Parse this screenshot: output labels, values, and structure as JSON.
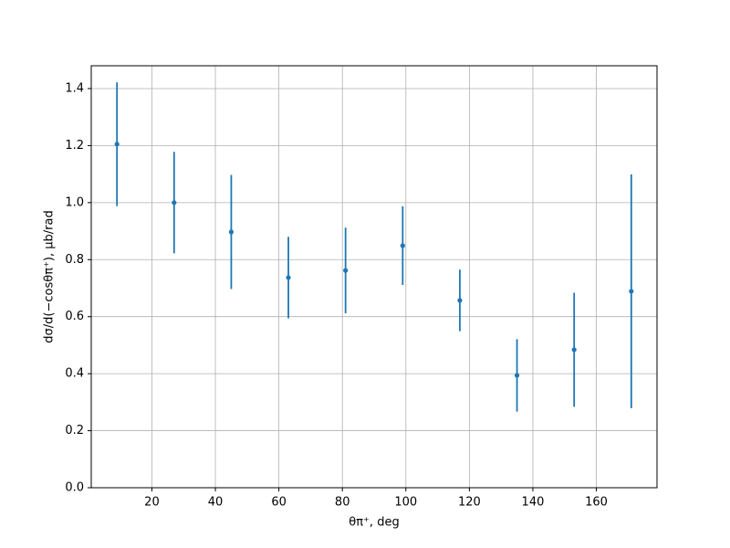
{
  "chart_data": {
    "type": "errorbar",
    "xlabel": "θπ⁺, deg",
    "ylabel": "dσ/d(−cosθπ⁺), μb/rad",
    "x": [
      9,
      27,
      45,
      63,
      81,
      99,
      117,
      135,
      153,
      171
    ],
    "values": [
      1.205,
      1.0,
      0.897,
      0.737,
      0.762,
      0.849,
      0.657,
      0.394,
      0.484,
      0.689
    ],
    "errors": [
      0.217,
      0.178,
      0.2,
      0.143,
      0.15,
      0.138,
      0.108,
      0.127,
      0.2,
      0.41
    ],
    "color": "#1f77b4",
    "xlim": [
      0.9,
      179.1
    ],
    "xticks": [
      20,
      40,
      60,
      80,
      100,
      120,
      140,
      160
    ],
    "ylim": [
      0,
      1.48
    ],
    "yticks": [
      {
        "value": 0,
        "label": "0.0"
      },
      0.2,
      0.4,
      0.6,
      0.8,
      {
        "value": 1,
        "label": "1.0"
      },
      1.2,
      1.4
    ],
    "grid": true
  }
}
